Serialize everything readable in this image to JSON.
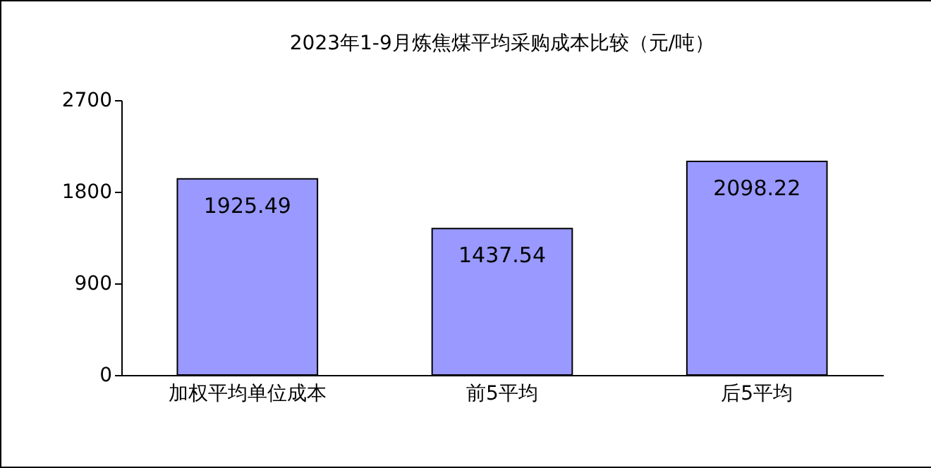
{
  "chart_data": {
    "type": "bar",
    "title": "2023年1-9月炼焦煤平均采购成本比较（元/吨）",
    "categories": [
      "加权平均单位成本",
      "前5平均",
      "后5平均"
    ],
    "values": [
      1925.49,
      1437.54,
      2098.22
    ],
    "color": "#9999ff",
    "ylim": [
      0,
      2700
    ],
    "yticks": [
      0,
      900,
      1800,
      2700
    ],
    "grid": false,
    "data_labels": true
  }
}
